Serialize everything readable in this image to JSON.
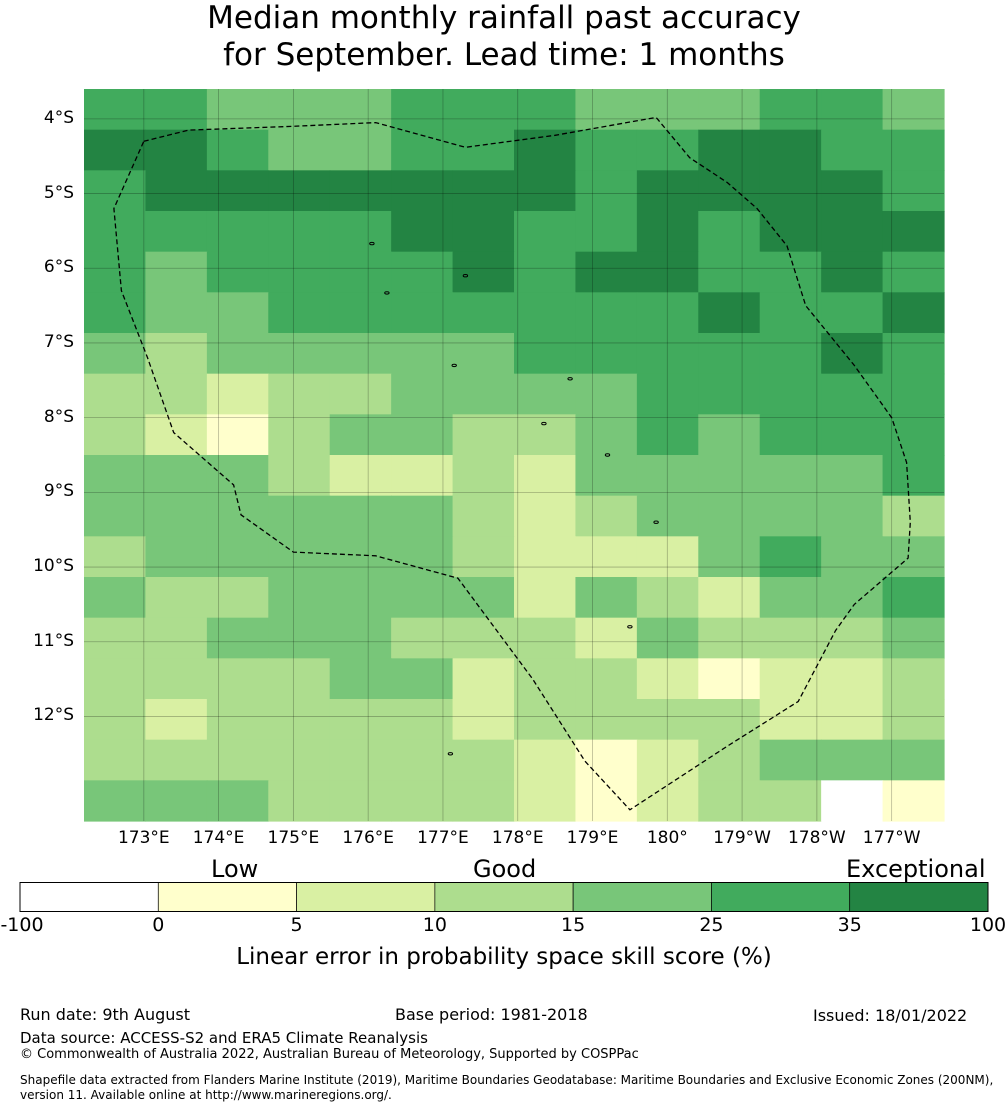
{
  "title": {
    "line1": "Median monthly rainfall past accuracy",
    "line2": "for September. Lead time: 1 months"
  },
  "map": {
    "lat_labels": [
      "4°S",
      "5°S",
      "6°S",
      "7°S",
      "8°S",
      "9°S",
      "10°S",
      "11°S",
      "12°S"
    ],
    "lat_values": [
      -4,
      -5,
      -6,
      -7,
      -8,
      -9,
      -10,
      -11,
      -12
    ],
    "lon_labels": [
      "173°E",
      "174°E",
      "175°E",
      "176°E",
      "177°E",
      "178°E",
      "179°E",
      "180°",
      "179°W",
      "178°W",
      "177°W"
    ],
    "lon_values": [
      173,
      174,
      175,
      176,
      177,
      178,
      179,
      180,
      181,
      182,
      183
    ],
    "extent": {
      "lon_min": 172.2,
      "lon_max": 183.7,
      "lat_min": -13.4,
      "lat_max": -3.6
    },
    "grid_cols": 14,
    "grid_rows": 18,
    "skill_grid": [
      [
        4,
        4,
        3,
        3,
        3,
        4,
        4,
        4,
        3,
        3,
        3,
        4,
        4,
        3
      ],
      [
        5,
        5,
        4,
        3,
        3,
        4,
        4,
        5,
        4,
        4,
        5,
        5,
        4,
        4
      ],
      [
        4,
        5,
        5,
        5,
        5,
        5,
        5,
        5,
        4,
        5,
        5,
        5,
        5,
        4
      ],
      [
        4,
        4,
        4,
        4,
        4,
        5,
        5,
        4,
        4,
        5,
        4,
        5,
        5,
        5
      ],
      [
        4,
        3,
        4,
        4,
        4,
        4,
        5,
        4,
        5,
        5,
        4,
        4,
        5,
        4
      ],
      [
        4,
        3,
        3,
        4,
        4,
        4,
        4,
        4,
        4,
        4,
        5,
        4,
        4,
        5
      ],
      [
        3,
        2,
        3,
        3,
        3,
        3,
        3,
        4,
        4,
        4,
        4,
        4,
        5,
        4
      ],
      [
        2,
        2,
        1,
        2,
        2,
        3,
        3,
        3,
        3,
        4,
        4,
        4,
        4,
        4
      ],
      [
        2,
        1,
        0,
        2,
        3,
        3,
        2,
        2,
        3,
        4,
        3,
        4,
        4,
        4
      ],
      [
        3,
        3,
        3,
        2,
        1,
        1,
        2,
        1,
        3,
        3,
        3,
        3,
        3,
        4
      ],
      [
        3,
        3,
        3,
        3,
        3,
        3,
        2,
        1,
        2,
        3,
        3,
        3,
        3,
        2
      ],
      [
        2,
        3,
        3,
        3,
        3,
        3,
        2,
        1,
        1,
        1,
        3,
        4,
        3,
        3
      ],
      [
        3,
        2,
        2,
        3,
        3,
        3,
        3,
        1,
        3,
        2,
        1,
        3,
        3,
        4
      ],
      [
        2,
        2,
        3,
        3,
        3,
        2,
        2,
        2,
        1,
        3,
        2,
        2,
        2,
        3
      ],
      [
        2,
        2,
        2,
        2,
        3,
        3,
        1,
        2,
        2,
        1,
        0,
        1,
        1,
        2
      ],
      [
        2,
        1,
        2,
        2,
        2,
        2,
        1,
        2,
        2,
        2,
        2,
        1,
        1,
        2
      ],
      [
        2,
        2,
        2,
        2,
        2,
        2,
        2,
        1,
        0,
        1,
        2,
        3,
        3,
        3
      ],
      [
        3,
        3,
        3,
        2,
        2,
        2,
        2,
        1,
        0,
        1,
        2,
        2,
        -1,
        0
      ]
    ],
    "boundary_lonlat": [
      [
        173.0,
        -4.3
      ],
      [
        173.6,
        -4.15
      ],
      [
        175.0,
        -4.1
      ],
      [
        176.1,
        -4.05
      ],
      [
        177.3,
        -4.38
      ],
      [
        178.5,
        -4.22
      ],
      [
        179.85,
        -3.98
      ],
      [
        180.3,
        -4.52
      ],
      [
        180.8,
        -4.85
      ],
      [
        181.2,
        -5.2
      ],
      [
        181.6,
        -5.7
      ],
      [
        181.85,
        -6.5
      ],
      [
        182.5,
        -7.3
      ],
      [
        183.0,
        -8.0
      ],
      [
        183.2,
        -8.6
      ],
      [
        183.25,
        -9.4
      ],
      [
        183.22,
        -9.88
      ],
      [
        182.5,
        -10.5
      ],
      [
        182.25,
        -10.85
      ],
      [
        181.75,
        -11.8
      ],
      [
        180.8,
        -12.4
      ],
      [
        179.5,
        -13.25
      ],
      [
        178.9,
        -12.6
      ],
      [
        178.2,
        -11.5
      ],
      [
        177.2,
        -10.15
      ],
      [
        176.1,
        -9.85
      ],
      [
        175.0,
        -9.8
      ],
      [
        174.3,
        -9.3
      ],
      [
        174.2,
        -8.9
      ],
      [
        173.4,
        -8.2
      ],
      [
        173.05,
        -7.2
      ],
      [
        172.7,
        -6.3
      ],
      [
        172.6,
        -5.2
      ],
      [
        173.0,
        -4.3
      ]
    ],
    "islands_lonlat": [
      [
        176.05,
        -5.67
      ],
      [
        176.25,
        -6.33
      ],
      [
        177.3,
        -6.1
      ],
      [
        177.15,
        -7.3
      ],
      [
        178.7,
        -7.48
      ],
      [
        178.35,
        -8.08
      ],
      [
        179.2,
        -8.5
      ],
      [
        179.85,
        -9.4
      ],
      [
        179.5,
        -10.8
      ],
      [
        177.1,
        -12.5
      ]
    ]
  },
  "colorbar": {
    "categories": [
      "Low",
      "Good",
      "Exceptional"
    ],
    "tick_labels": [
      "-100",
      "0",
      "5",
      "10",
      "15",
      "25",
      "35",
      "100"
    ],
    "bins": [
      {
        "from": -100,
        "to": 0,
        "color": "#ffffff"
      },
      {
        "from": 0,
        "to": 5,
        "color": "#ffffcc"
      },
      {
        "from": 5,
        "to": 10,
        "color": "#d9f0a3"
      },
      {
        "from": 10,
        "to": 15,
        "color": "#addd8e"
      },
      {
        "from": 15,
        "to": 25,
        "color": "#78c679"
      },
      {
        "from": 25,
        "to": 35,
        "color": "#41ab5d"
      },
      {
        "from": 35,
        "to": 100,
        "color": "#238443"
      }
    ],
    "label": "Linear error in probability space skill score (%)"
  },
  "footer": {
    "run_date": "Run date: 9th August",
    "base_period": "Base period: 1981-2018",
    "issued": "Issued: 18/01/2022",
    "data_source": "Data source: ACCESS-S2 and ERA5 Climate Reanalysis",
    "copyright": "© Commonwealth of Australia 2022, Australian Bureau of Meteorology, Supported by COSPPac",
    "shapefile_line1": "Shapefile data extracted from Flanders Marine Institute (2019), Maritime Boundaries Geodatabase: Maritime Boundaries and Exclusive Economic Zones (200NM),",
    "shapefile_line2": "version 11. Available online at http://www.marineregions.org/."
  }
}
